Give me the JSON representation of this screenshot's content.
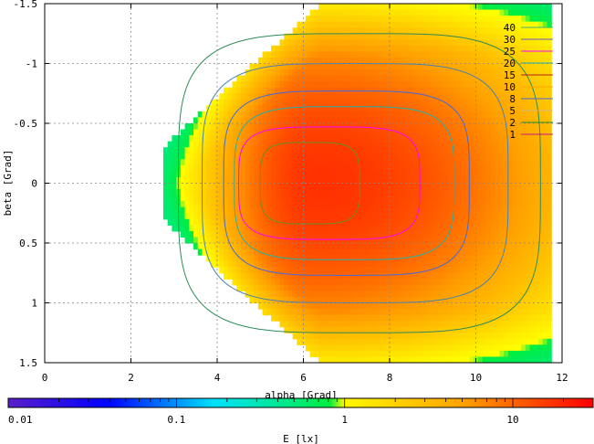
{
  "chart_data": {
    "type": "heatmap",
    "title": "",
    "xlabel": "alpha [Grad]",
    "ylabel": "beta [Grad]",
    "xlim": [
      0,
      12
    ],
    "ylim": [
      -1.5,
      1.5
    ],
    "y_reversed": true,
    "x_ticks": [
      0,
      2,
      4,
      6,
      8,
      10,
      12
    ],
    "y_ticks": [
      -1.5,
      -1,
      -0.5,
      0,
      0.5,
      1,
      1.5
    ],
    "x_tick_labels": [
      "0",
      "2",
      "4",
      "6",
      "8",
      "10",
      "12"
    ],
    "y_tick_labels": [
      "-1.5",
      "-1",
      "-0.5",
      "0",
      "0.5",
      "1",
      "1.5"
    ],
    "grid": true,
    "colorbar": {
      "label": "E [lx]",
      "scale": "log",
      "range": [
        0.01,
        30
      ],
      "tick_labels": [
        "0.01",
        "0.1",
        "1",
        "10"
      ],
      "tick_values": [
        0.01,
        0.1,
        1,
        10
      ],
      "palette": [
        "#5a1fc8",
        "#0000ff",
        "#00e0ff",
        "#00ee40",
        "#ffff00",
        "#ffa000",
        "#ff0000"
      ]
    },
    "contour_legend": {
      "placement": "top-right",
      "levels": [
        "40",
        "30",
        "25",
        "20",
        "15",
        "10",
        "8",
        "5",
        "2",
        "1"
      ],
      "colors": [
        "#3cb371",
        "#6a5acd",
        "#ff00ff",
        "#20b2aa",
        "#b22222",
        "#ffa500",
        "#4169e1",
        "#d2b48c",
        "#228b22",
        "#c71585"
      ]
    },
    "field": {
      "alpha_range": [
        2.75,
        11.75
      ],
      "max_value": 17,
      "peak_alpha": 6.3,
      "peak_beta": 0.0
    },
    "contours": [
      {
        "level": "2",
        "color": "#2e8b57",
        "alpha_half_width": 4.2,
        "beta_half_width": 1.25,
        "center_alpha": 7.3
      },
      {
        "level": "5",
        "color": "#4682b4",
        "alpha_half_width": 3.55,
        "beta_half_width": 1.0,
        "center_alpha": 7.2
      },
      {
        "level": "8",
        "color": "#4169e1",
        "alpha_half_width": 2.85,
        "beta_half_width": 0.77,
        "center_alpha": 7.0
      },
      {
        "level": "10",
        "color": "#20b2aa",
        "alpha_half_width": 2.55,
        "beta_half_width": 0.64,
        "center_alpha": 6.95
      },
      {
        "level": "15",
        "color": "#ff00ff",
        "alpha_half_width": 2.1,
        "beta_half_width": 0.47,
        "center_alpha": 6.6
      },
      {
        "level": "25",
        "color": "#6b8e23",
        "alpha_half_width": 1.15,
        "beta_half_width": 0.34,
        "center_alpha": 6.15
      }
    ]
  }
}
